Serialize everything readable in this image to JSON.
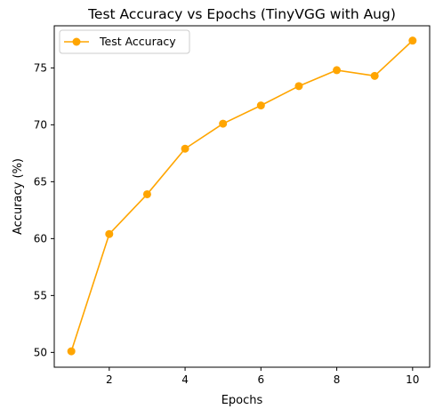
{
  "chart_data": {
    "type": "line",
    "title": "Test Accuracy vs Epochs (TinyVGG with Aug)",
    "xlabel": "Epochs",
    "ylabel": "Accuracy (%)",
    "x": [
      1,
      2,
      3,
      4,
      5,
      6,
      7,
      8,
      9,
      10
    ],
    "series": [
      {
        "name": "Test Accuracy",
        "color": "#FFA500",
        "marker": "circle",
        "values": [
          50.1,
          60.4,
          63.9,
          67.9,
          70.1,
          71.7,
          73.4,
          74.8,
          74.3,
          77.4
        ]
      }
    ],
    "xlim": [
      0.55,
      10.45
    ],
    "ylim": [
      48.7,
      78.7
    ],
    "xticks": [
      2,
      4,
      6,
      8,
      10
    ],
    "yticks": [
      50,
      55,
      60,
      65,
      70,
      75
    ],
    "grid": false,
    "legend": "upper-left"
  }
}
